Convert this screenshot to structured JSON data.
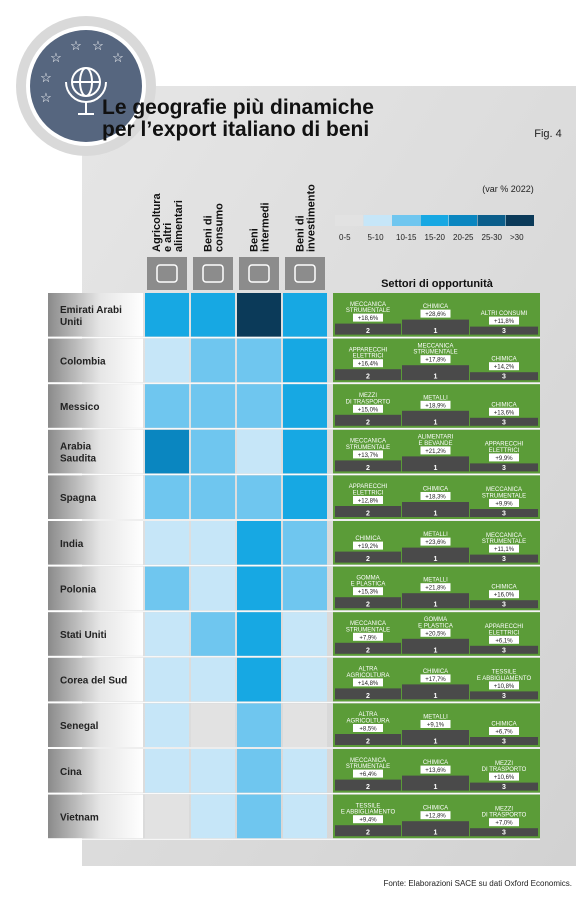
{
  "header": {
    "title": [
      "Le geografie più dinamiche",
      "per l’export italiano di beni"
    ],
    "figure": "Fig. 4"
  },
  "columns": [
    {
      "label": [
        "Agricoltura",
        "e altri",
        "alimentari"
      ]
    },
    {
      "label": [
        "Beni di",
        "consumo"
      ]
    },
    {
      "label": [
        "Beni",
        "intermedi"
      ]
    },
    {
      "label": [
        "Beni di",
        "investimento"
      ]
    }
  ],
  "legend": {
    "unit": "(var % 2022)",
    "bins": [
      {
        "label": "0-5",
        "color": "#e2e2e2"
      },
      {
        "label": "5-10",
        "color": "#c6e6f8"
      },
      {
        "label": "10-15",
        "color": "#6fc6ef"
      },
      {
        "label": "15-20",
        "color": "#17a8e3"
      },
      {
        "label": "20-25",
        "color": "#0a86c0"
      },
      {
        "label": "25-30",
        "color": "#0b5e8b"
      },
      {
        "label": ">30",
        "color": "#0b3a59"
      }
    ]
  },
  "sectors_title": "Settori di opportunità",
  "rows": [
    {
      "country": [
        "Emirati Arabi",
        "Uniti"
      ],
      "cells": [
        "15-20",
        "15-20",
        ">30",
        "15-20"
      ],
      "sectors": [
        {
          "name": [
            "MECCANICA",
            "STRUMENTALE"
          ],
          "value": "+18,6%",
          "rank": 2
        },
        {
          "name": [
            "CHIMICA"
          ],
          "value": "+28,6%",
          "rank": 1
        },
        {
          "name": [
            "ALTRI CONSUMI"
          ],
          "value": "+11,8%",
          "rank": 3
        }
      ]
    },
    {
      "country": [
        "Colombia"
      ],
      "cells": [
        "5-10",
        "10-15",
        "10-15",
        "15-20"
      ],
      "sectors": [
        {
          "name": [
            "APPARECCHI",
            "ELETTRICI"
          ],
          "value": "+16,4%",
          "rank": 2
        },
        {
          "name": [
            "MECCANICA",
            "STRUMENTALE"
          ],
          "value": "+17,8%",
          "rank": 1
        },
        {
          "name": [
            "CHIMICA"
          ],
          "value": "+14,2%",
          "rank": 3
        }
      ]
    },
    {
      "country": [
        "Messico"
      ],
      "cells": [
        "10-15",
        "10-15",
        "10-15",
        "15-20"
      ],
      "sectors": [
        {
          "name": [
            "MEZZI",
            "DI TRASPORTO"
          ],
          "value": "+15,0%",
          "rank": 2
        },
        {
          "name": [
            "METALLI"
          ],
          "value": "+18,9%",
          "rank": 1
        },
        {
          "name": [
            "CHIMICA"
          ],
          "value": "+13,6%",
          "rank": 3
        }
      ]
    },
    {
      "country": [
        "Arabia",
        "Saudita"
      ],
      "cells": [
        "20-25",
        "10-15",
        "5-10",
        "15-20"
      ],
      "sectors": [
        {
          "name": [
            "MECCANICA",
            "STRUMENTALE"
          ],
          "value": "+13,7%",
          "rank": 2
        },
        {
          "name": [
            "ALIMENTARI",
            "E BEVANDE"
          ],
          "value": "+21,2%",
          "rank": 1
        },
        {
          "name": [
            "APPARECCHI",
            "ELETTRICI"
          ],
          "value": "+9,9%",
          "rank": 3
        }
      ]
    },
    {
      "country": [
        "Spagna"
      ],
      "cells": [
        "10-15",
        "10-15",
        "10-15",
        "15-20"
      ],
      "sectors": [
        {
          "name": [
            "APPARECCHI",
            "ELETTRICI"
          ],
          "value": "+12,8%",
          "rank": 2
        },
        {
          "name": [
            "CHIMICA"
          ],
          "value": "+18,3%",
          "rank": 1
        },
        {
          "name": [
            "MECCANICA",
            "STRUMENTALE"
          ],
          "value": "+9,9%",
          "rank": 3
        }
      ]
    },
    {
      "country": [
        "India"
      ],
      "cells": [
        "5-10",
        "5-10",
        "15-20",
        "10-15"
      ],
      "sectors": [
        {
          "name": [
            "CHIMICA"
          ],
          "value": "+19,2%",
          "rank": 2
        },
        {
          "name": [
            "METALLI"
          ],
          "value": "+23,6%",
          "rank": 1
        },
        {
          "name": [
            "MECCANICA",
            "STRUMENTALE"
          ],
          "value": "+11,1%",
          "rank": 3
        }
      ]
    },
    {
      "country": [
        "Polonia"
      ],
      "cells": [
        "10-15",
        "5-10",
        "15-20",
        "10-15"
      ],
      "sectors": [
        {
          "name": [
            "GOMMA",
            "E PLASTICA"
          ],
          "value": "+15,3%",
          "rank": 2
        },
        {
          "name": [
            "METALLI"
          ],
          "value": "+21,8%",
          "rank": 1
        },
        {
          "name": [
            "CHIMICA"
          ],
          "value": "+16,0%",
          "rank": 3
        }
      ]
    },
    {
      "country": [
        "Stati Uniti"
      ],
      "cells": [
        "5-10",
        "10-15",
        "15-20",
        "5-10"
      ],
      "sectors": [
        {
          "name": [
            "MECCANICA",
            "STRUMENTALE"
          ],
          "value": "+7,9%",
          "rank": 2
        },
        {
          "name": [
            "GOMMA",
            "E PLASTICA"
          ],
          "value": "+20,5%",
          "rank": 1
        },
        {
          "name": [
            "APPARECCHI",
            "ELETTRICI"
          ],
          "value": "+6,1%",
          "rank": 3
        }
      ]
    },
    {
      "country": [
        "Corea del Sud"
      ],
      "cells": [
        "5-10",
        "5-10",
        "15-20",
        "5-10"
      ],
      "sectors": [
        {
          "name": [
            "ALTRA",
            "AGRICOLTURA"
          ],
          "value": "+14,8%",
          "rank": 2
        },
        {
          "name": [
            "CHIMICA"
          ],
          "value": "+17,7%",
          "rank": 1
        },
        {
          "name": [
            "TESSILE",
            "E ABBIGLIAMENTO"
          ],
          "value": "+10,8%",
          "rank": 3
        }
      ]
    },
    {
      "country": [
        "Senegal"
      ],
      "cells": [
        "5-10",
        "0-5",
        "10-15",
        "0-5"
      ],
      "sectors": [
        {
          "name": [
            "ALTRA",
            "AGRICOLTURA"
          ],
          "value": "+8,5%",
          "rank": 2
        },
        {
          "name": [
            "METALLI"
          ],
          "value": "+9,1%",
          "rank": 1
        },
        {
          "name": [
            "CHIMICA"
          ],
          "value": "+6,7%",
          "rank": 3
        }
      ]
    },
    {
      "country": [
        "Cina"
      ],
      "cells": [
        "5-10",
        "5-10",
        "10-15",
        "5-10"
      ],
      "sectors": [
        {
          "name": [
            "MECCANICA",
            "STRUMENTALE"
          ],
          "value": "+6,4%",
          "rank": 2
        },
        {
          "name": [
            "CHIMICA"
          ],
          "value": "+13,6%",
          "rank": 1
        },
        {
          "name": [
            "MEZZI",
            "DI TRASPORTO"
          ],
          "value": "+10,6%",
          "rank": 3
        }
      ]
    },
    {
      "country": [
        "Vietnam"
      ],
      "cells": [
        "0-5",
        "5-10",
        "10-15",
        "5-10"
      ],
      "sectors": [
        {
          "name": [
            "TESSILE",
            "E ABBIGLIAMENTO"
          ],
          "value": "+9,4%",
          "rank": 2
        },
        {
          "name": [
            "CHIMICA"
          ],
          "value": "+12,8%",
          "rank": 1
        },
        {
          "name": [
            "MEZZI",
            "DI TRASPORTO"
          ],
          "value": "+7,0%",
          "rank": 3
        }
      ]
    }
  ],
  "source": "Fonte: Elaborazioni SACE su dati Oxford Economics."
}
